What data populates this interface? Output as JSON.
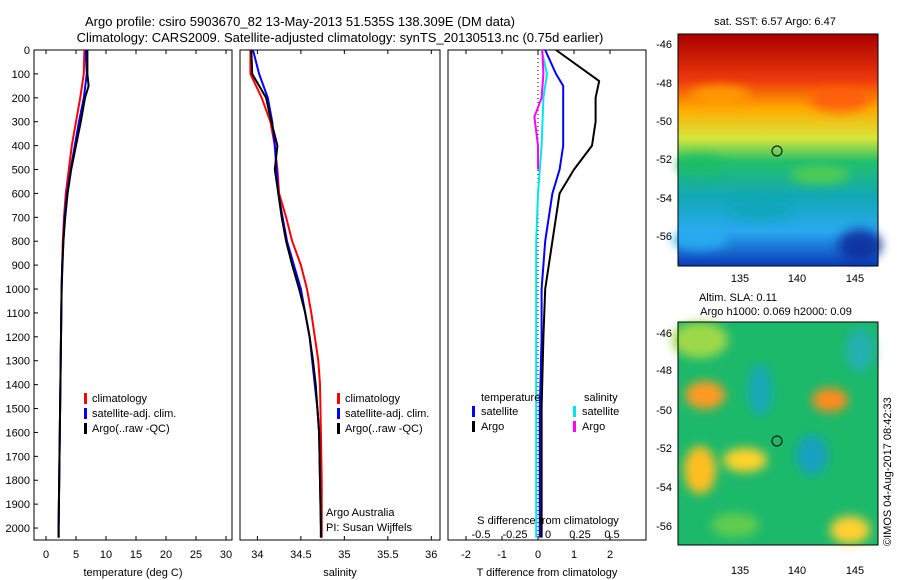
{
  "header": {
    "title_line1": "Argo profile: csiro 5903670_82 13-May-2013 51.535S 138.309E (DM data)",
    "title_line2": "Climatology: CARS2009. Satellite-adjusted climatology: synTS_20130513.nc (0.75d earlier)"
  },
  "colors": {
    "climatology": "#ff0000",
    "satellite": "#0000ff",
    "argo": "#000000",
    "salinity_satellite": "#00e5ee",
    "salinity_argo": "#ff00ff"
  },
  "legend": {
    "climatology": "climatology",
    "satellite_adj": "satellite-adj. clim.",
    "argo_raw": "Argo(..raw -QC)",
    "temperature": "temperature",
    "salinity": "salinity",
    "satellite": "satellite",
    "argo": "Argo"
  },
  "credits": {
    "agency": "Argo Australia",
    "pi": "PI: Susan Wijffels"
  },
  "diff_axis": {
    "s_label": "S difference from climatology",
    "s_ticks": [
      "-0.5",
      "-0.25",
      "0",
      "0.25",
      "0.5"
    ]
  },
  "maps": {
    "sst_title": "sat. SST: 6.57 Argo: 6.47",
    "sla_title1": "Altim. SLA: 0.11",
    "sla_title2": "Argo h1000: 0.069 h2000: 0.09",
    "x_ticks": [
      "135",
      "140",
      "145"
    ],
    "y_ticks": [
      "-46",
      "-48",
      "-50",
      "-52",
      "-54",
      "-56"
    ],
    "stamp": "©IMOS 04-Aug-2017 08:42:33"
  },
  "chart_data": [
    {
      "type": "line",
      "xlabel": "temperature (deg C)",
      "ylabel": "",
      "xlim": [
        -2,
        31
      ],
      "ylim": [
        2050,
        0
      ],
      "x_ticks": [
        0,
        5,
        10,
        15,
        20,
        25,
        30
      ],
      "y_ticks": [
        0,
        100,
        200,
        300,
        400,
        500,
        600,
        700,
        800,
        900,
        1000,
        1100,
        1200,
        1300,
        1400,
        1500,
        1600,
        1700,
        1800,
        1900,
        2000
      ],
      "series": [
        {
          "name": "climatology",
          "color": "#ff0000",
          "points": [
            [
              6.4,
              0
            ],
            [
              6.3,
              100
            ],
            [
              5.7,
              200
            ],
            [
              5.0,
              300
            ],
            [
              4.3,
              400
            ],
            [
              3.8,
              500
            ],
            [
              3.3,
              600
            ],
            [
              3.0,
              700
            ],
            [
              2.8,
              800
            ],
            [
              2.7,
              900
            ],
            [
              2.6,
              1000
            ],
            [
              2.5,
              1200
            ],
            [
              2.4,
              1400
            ],
            [
              2.3,
              1600
            ],
            [
              2.2,
              1800
            ],
            [
              2.1,
              2000
            ],
            [
              2.1,
              2040
            ]
          ]
        },
        {
          "name": "satellite-adj. clim.",
          "color": "#0000ff",
          "points": [
            [
              6.6,
              0
            ],
            [
              6.8,
              100
            ],
            [
              6.3,
              200
            ],
            [
              5.5,
              300
            ],
            [
              4.8,
              400
            ],
            [
              4.1,
              500
            ],
            [
              3.5,
              600
            ],
            [
              3.1,
              700
            ],
            [
              2.9,
              800
            ],
            [
              2.75,
              900
            ],
            [
              2.6,
              1000
            ],
            [
              2.5,
              1200
            ],
            [
              2.4,
              1400
            ],
            [
              2.3,
              1600
            ],
            [
              2.2,
              1800
            ],
            [
              2.1,
              2000
            ],
            [
              2.1,
              2040
            ]
          ]
        },
        {
          "name": "Argo(..raw -QC)",
          "color": "#000000",
          "points": [
            [
              6.9,
              0
            ],
            [
              6.9,
              100
            ],
            [
              7.1,
              150
            ],
            [
              6.5,
              200
            ],
            [
              5.8,
              300
            ],
            [
              5.0,
              400
            ],
            [
              4.2,
              500
            ],
            [
              3.6,
              600
            ],
            [
              3.2,
              700
            ],
            [
              2.9,
              800
            ],
            [
              2.7,
              900
            ],
            [
              2.6,
              1000
            ],
            [
              2.5,
              1200
            ],
            [
              2.4,
              1400
            ],
            [
              2.3,
              1600
            ],
            [
              2.2,
              1800
            ],
            [
              2.1,
              2000
            ],
            [
              2.1,
              2040
            ]
          ]
        }
      ]
    },
    {
      "type": "line",
      "xlabel": "salinity",
      "ylabel": "",
      "xlim": [
        33.8,
        36.1
      ],
      "ylim": [
        2050,
        0
      ],
      "x_ticks": [
        34,
        34.5,
        35,
        35.5,
        36
      ],
      "series": [
        {
          "name": "climatology",
          "color": "#ff0000",
          "points": [
            [
              33.92,
              0
            ],
            [
              33.92,
              100
            ],
            [
              34.05,
              200
            ],
            [
              34.15,
              300
            ],
            [
              34.2,
              400
            ],
            [
              34.23,
              500
            ],
            [
              34.25,
              600
            ],
            [
              34.33,
              700
            ],
            [
              34.4,
              800
            ],
            [
              34.5,
              900
            ],
            [
              34.57,
              1000
            ],
            [
              34.62,
              1100
            ],
            [
              34.66,
              1200
            ],
            [
              34.7,
              1300
            ],
            [
              34.72,
              1400
            ],
            [
              34.73,
              1600
            ],
            [
              34.74,
              1800
            ],
            [
              34.74,
              2000
            ],
            [
              34.74,
              2040
            ]
          ]
        },
        {
          "name": "satellite-adj. clim.",
          "color": "#0000ff",
          "points": [
            [
              33.95,
              0
            ],
            [
              34.02,
              100
            ],
            [
              34.12,
              200
            ],
            [
              34.17,
              300
            ],
            [
              34.2,
              400
            ],
            [
              34.22,
              500
            ],
            [
              34.24,
              600
            ],
            [
              34.29,
              700
            ],
            [
              34.34,
              800
            ],
            [
              34.42,
              900
            ],
            [
              34.5,
              1000
            ],
            [
              34.55,
              1100
            ],
            [
              34.6,
              1200
            ],
            [
              34.63,
              1300
            ],
            [
              34.66,
              1400
            ],
            [
              34.69,
              1500
            ],
            [
              34.71,
              1600
            ],
            [
              34.72,
              1800
            ],
            [
              34.73,
              2000
            ],
            [
              34.73,
              2040
            ]
          ]
        },
        {
          "name": "Argo(..raw -QC)",
          "color": "#000000",
          "points": [
            [
              33.93,
              0
            ],
            [
              33.94,
              100
            ],
            [
              34.1,
              200
            ],
            [
              34.16,
              300
            ],
            [
              34.23,
              400
            ],
            [
              34.2,
              500
            ],
            [
              34.24,
              600
            ],
            [
              34.28,
              700
            ],
            [
              34.33,
              800
            ],
            [
              34.4,
              900
            ],
            [
              34.48,
              1000
            ],
            [
              34.55,
              1100
            ],
            [
              34.6,
              1200
            ],
            [
              34.64,
              1300
            ],
            [
              34.67,
              1400
            ],
            [
              34.69,
              1500
            ],
            [
              34.71,
              1600
            ],
            [
              34.72,
              1800
            ],
            [
              34.73,
              2000
            ],
            [
              34.73,
              2040
            ]
          ]
        }
      ]
    },
    {
      "type": "line",
      "xlabel": "T difference from climatology",
      "ylabel": "",
      "xlim": [
        -2.5,
        3.0
      ],
      "ylim": [
        2050,
        0
      ],
      "x_ticks": [
        -2,
        -1,
        0,
        1,
        2
      ],
      "series": [
        {
          "name": "temperature satellite",
          "color": "#0000ff",
          "points": [
            [
              0.2,
              0
            ],
            [
              0.5,
              100
            ],
            [
              0.7,
              150
            ],
            [
              0.7,
              300
            ],
            [
              0.7,
              400
            ],
            [
              0.6,
              500
            ],
            [
              0.4,
              600
            ],
            [
              0.2,
              800
            ],
            [
              0.1,
              1000
            ],
            [
              0.1,
              1200
            ],
            [
              0.05,
              1500
            ],
            [
              0.05,
              2040
            ]
          ]
        },
        {
          "name": "temperature Argo",
          "color": "#000000",
          "points": [
            [
              0.5,
              0
            ],
            [
              1.7,
              130
            ],
            [
              1.6,
              200
            ],
            [
              1.6,
              300
            ],
            [
              1.5,
              400
            ],
            [
              1.0,
              500
            ],
            [
              0.6,
              600
            ],
            [
              0.4,
              800
            ],
            [
              0.2,
              1000
            ],
            [
              0.15,
              1200
            ],
            [
              0.1,
              1500
            ],
            [
              0.1,
              2040
            ]
          ]
        },
        {
          "name": "salinity satellite",
          "color": "#00e5ee",
          "points": [
            [
              0.1,
              0
            ],
            [
              0.25,
              100
            ],
            [
              0.15,
              200
            ],
            [
              0.1,
              400
            ],
            [
              0.0,
              600
            ],
            [
              -0.05,
              800
            ],
            [
              -0.05,
              1200
            ],
            [
              -0.05,
              1600
            ],
            [
              -0.05,
              2040
            ]
          ]
        },
        {
          "name": "salinity Argo",
          "color": "#ff00ff",
          "points": [
            [
              0.12,
              0
            ],
            [
              0.15,
              100
            ],
            [
              0.1,
              200
            ],
            [
              -0.1,
              280
            ],
            [
              0.0,
              400
            ],
            [
              0.0,
              500
            ]
          ]
        }
      ]
    }
  ]
}
